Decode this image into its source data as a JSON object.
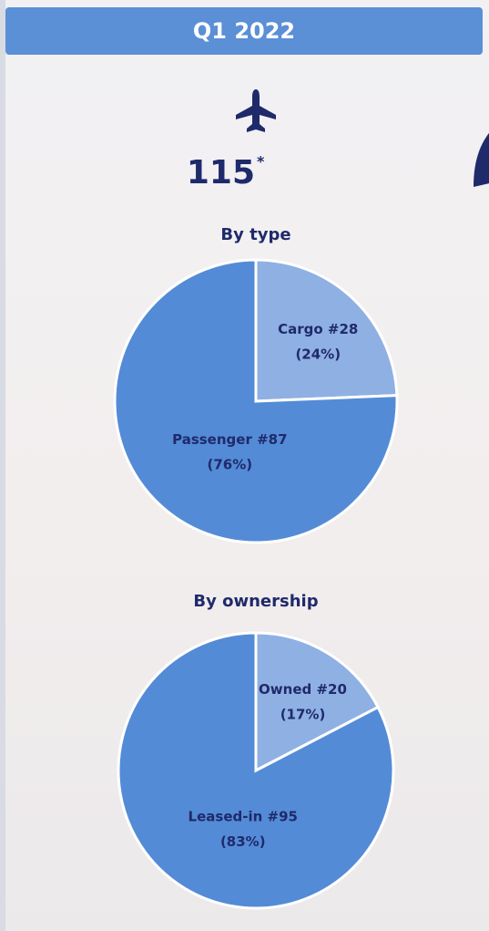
{
  "header": {
    "title": "Q1 2022"
  },
  "total": {
    "value": 115,
    "note": "*"
  },
  "chart_data": [
    {
      "type": "pie",
      "title": "By type",
      "categories": [
        "Cargo",
        "Passenger"
      ],
      "values": [
        28,
        87
      ],
      "value_labels": [
        "#28",
        "#87"
      ],
      "percentages": [
        24,
        76
      ],
      "percentage_labels": [
        "(24%)",
        "(76%)"
      ],
      "colors": [
        "#8fb0e3",
        "#548bd6"
      ]
    },
    {
      "type": "pie",
      "title": "By ownership",
      "categories": [
        "Owned",
        "Leased-in"
      ],
      "values": [
        20,
        95
      ],
      "value_labels": [
        "#20",
        "#95"
      ],
      "percentages": [
        17,
        83
      ],
      "percentage_labels": [
        "(17%)",
        "(83%)"
      ],
      "colors": [
        "#8fb0e3",
        "#548bd6"
      ]
    }
  ]
}
